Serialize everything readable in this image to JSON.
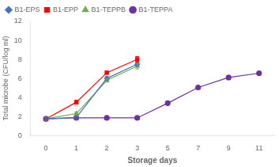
{
  "chart_data": {
    "type": "line",
    "categories": [
      "0",
      "1",
      "2",
      "3",
      "5",
      "7",
      "9",
      "11"
    ],
    "series": [
      {
        "name": "B1-EPS",
        "color": "#4472C4",
        "marker": "diamond",
        "values": [
          1.75,
          1.9,
          6.0,
          7.5,
          null,
          null,
          null,
          null
        ],
        "errors": [
          0.07,
          0.12,
          0.18,
          0.2,
          null,
          null,
          null,
          null
        ]
      },
      {
        "name": "B1-EPP",
        "color": "#FF0000",
        "marker": "square",
        "values": [
          1.75,
          3.5,
          6.6,
          8.0,
          null,
          null,
          null,
          null
        ],
        "errors": [
          0.07,
          0.2,
          0.15,
          0.3,
          null,
          null,
          null,
          null
        ]
      },
      {
        "name": "B1-TEPPB",
        "color": "#70AD47",
        "marker": "triangle",
        "values": [
          1.75,
          2.3,
          5.8,
          7.3,
          null,
          null,
          null,
          null
        ],
        "errors": [
          0.07,
          0.12,
          0.18,
          0.3,
          null,
          null,
          null,
          null
        ]
      },
      {
        "name": "B1-TEPPA",
        "color": "#7030A0",
        "marker": "circle",
        "values": [
          1.75,
          1.85,
          1.85,
          1.85,
          3.4,
          5.05,
          6.1,
          6.55
        ],
        "errors": [
          0.07,
          0.07,
          0.07,
          0.07,
          0.12,
          0.1,
          0.1,
          0.1
        ]
      }
    ],
    "xlabel": "Storage days",
    "ylabel": "Total microbe (CFU/log ml)",
    "ylim": [
      0,
      12
    ],
    "yticks": [
      0,
      2,
      4,
      6,
      8,
      10,
      12
    ],
    "grid": false,
    "legend": "upper left"
  }
}
